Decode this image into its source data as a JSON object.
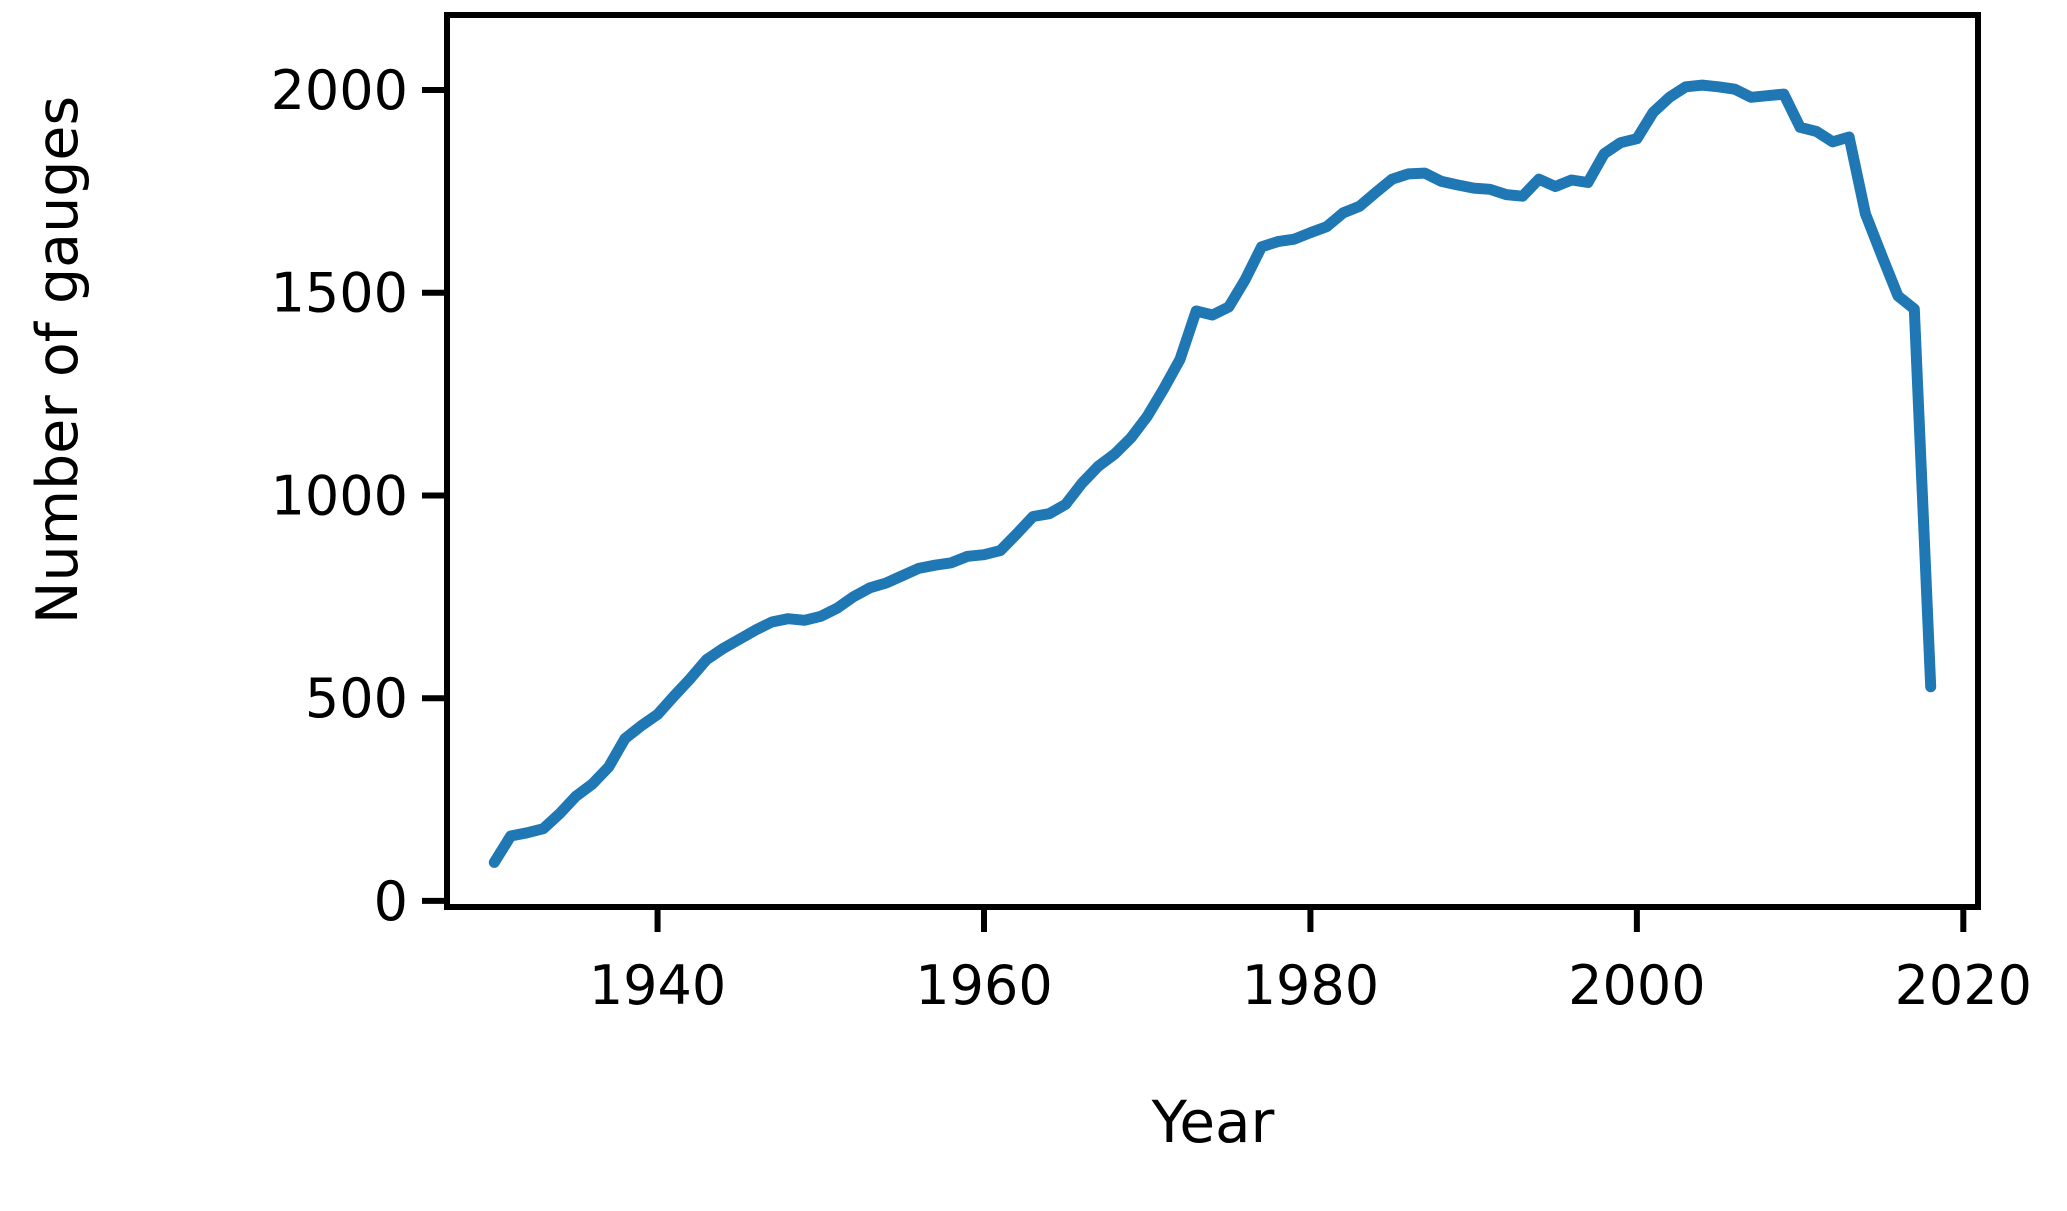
{
  "chart_data": {
    "type": "line",
    "title": "",
    "xlabel": "Year",
    "ylabel": "Number of gauges",
    "x_ticks": [
      1940,
      1960,
      1980,
      2000,
      2020
    ],
    "y_ticks": [
      0,
      500,
      1000,
      1500,
      2000
    ],
    "xlim": [
      1927.1,
      2020.9
    ],
    "ylim": [
      -15,
      2185
    ],
    "grid": false,
    "legend_position": "none",
    "line_color": "#1f77b4",
    "axis_color": "#000000",
    "line_width": 11,
    "series": [
      {
        "name": "Number of gauges",
        "x": [
          1930,
          1931,
          1932,
          1933,
          1934,
          1935,
          1936,
          1937,
          1938,
          1939,
          1940,
          1941,
          1942,
          1943,
          1944,
          1945,
          1946,
          1947,
          1948,
          1949,
          1950,
          1951,
          1952,
          1953,
          1954,
          1955,
          1956,
          1957,
          1958,
          1959,
          1960,
          1961,
          1962,
          1963,
          1964,
          1965,
          1966,
          1967,
          1968,
          1969,
          1970,
          1971,
          1972,
          1973,
          1974,
          1975,
          1976,
          1977,
          1978,
          1979,
          1980,
          1981,
          1982,
          1983,
          1984,
          1985,
          1986,
          1987,
          1988,
          1989,
          1990,
          1991,
          1992,
          1993,
          1994,
          1995,
          1996,
          1997,
          1998,
          1999,
          2000,
          2001,
          2002,
          2003,
          2004,
          2005,
          2006,
          2007,
          2008,
          2009,
          2010,
          2011,
          2012,
          2013,
          2014,
          2015,
          2016,
          2017,
          2018
        ],
        "y": [
          95,
          160,
          168,
          178,
          215,
          258,
          288,
          330,
          400,
          432,
          460,
          505,
          548,
          595,
          622,
          645,
          668,
          688,
          696,
          692,
          702,
          722,
          750,
          772,
          784,
          802,
          820,
          828,
          834,
          850,
          854,
          864,
          905,
          948,
          955,
          978,
          1030,
          1072,
          1102,
          1142,
          1195,
          1262,
          1335,
          1455,
          1445,
          1465,
          1532,
          1613,
          1626,
          1632,
          1648,
          1663,
          1697,
          1713,
          1747,
          1780,
          1793,
          1795,
          1775,
          1766,
          1758,
          1755,
          1742,
          1738,
          1780,
          1762,
          1778,
          1772,
          1843,
          1870,
          1880,
          1945,
          1982,
          2008,
          2012,
          2008,
          2002,
          1982,
          1986,
          1990,
          1908,
          1898,
          1872,
          1884,
          1695,
          1592,
          1492,
          1460,
          528
        ]
      }
    ]
  }
}
